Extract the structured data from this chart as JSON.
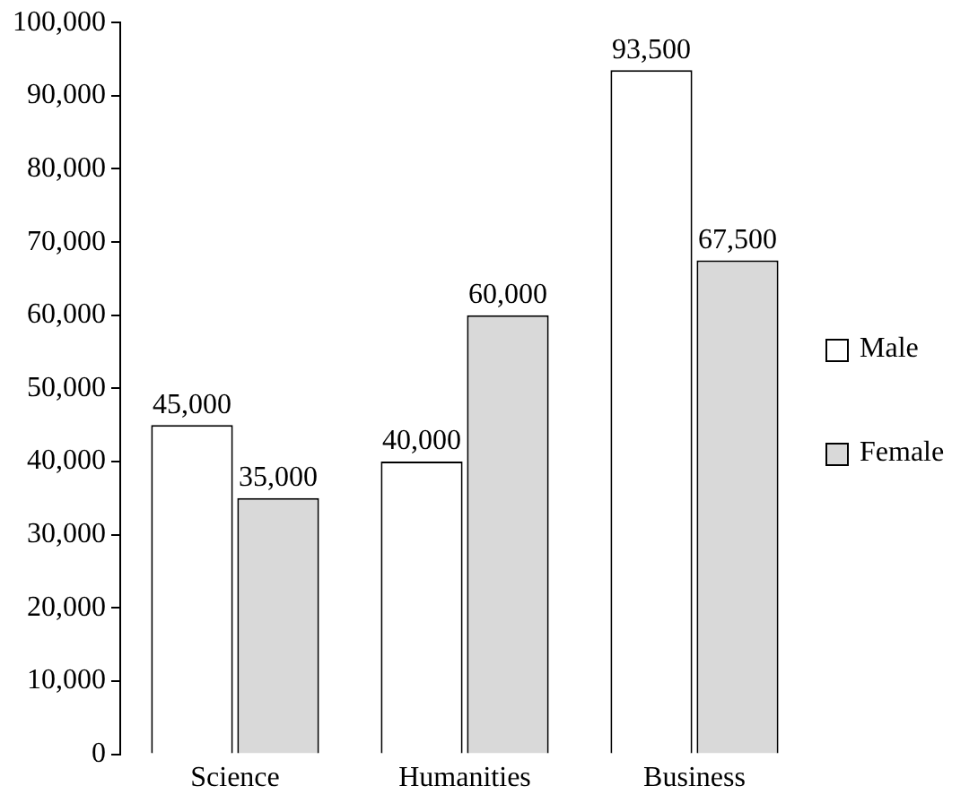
{
  "chart_data": {
    "type": "bar",
    "categories": [
      "Science",
      "Humanities",
      "Business"
    ],
    "series": [
      {
        "name": "Male",
        "color": "#ffffff",
        "values": [
          45000,
          40000,
          93500
        ],
        "value_labels": [
          "45,000",
          "40,000",
          "93,500"
        ]
      },
      {
        "name": "Female",
        "color": "#d9d9d9",
        "values": [
          35000,
          60000,
          67500
        ],
        "value_labels": [
          "35,000",
          "60,000",
          "67,500"
        ]
      }
    ],
    "ylim": [
      0,
      100000
    ],
    "yticks": [
      0,
      {
        "value": 10000,
        "label": "10,000"
      },
      {
        "value": 20000,
        "label": "20,000"
      },
      {
        "value": 30000,
        "label": "30,000"
      },
      {
        "value": 40000,
        "label": "40,000"
      },
      {
        "value": 50000,
        "label": "50,000"
      },
      {
        "value": 60000,
        "label": "60,000"
      },
      {
        "value": 70000,
        "label": "70,000"
      },
      {
        "value": 80000,
        "label": "80,000"
      },
      {
        "value": 90000,
        "label": "90,000"
      },
      {
        "value": 100000,
        "label": "100,000"
      }
    ],
    "grid": false,
    "legend": "right"
  }
}
